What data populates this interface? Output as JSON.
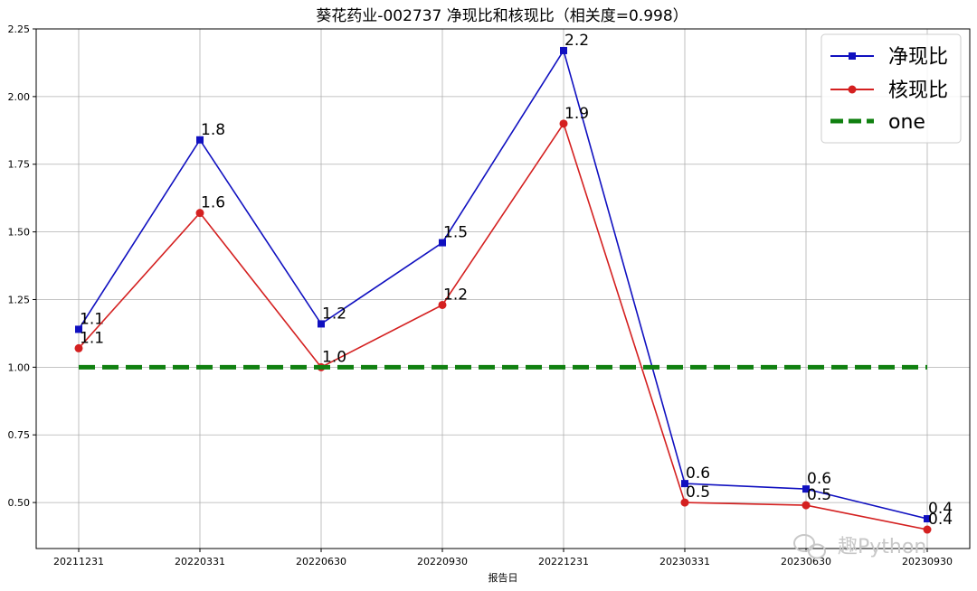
{
  "chart_data": {
    "type": "line",
    "title": "葵花药业-002737 净现比和核现比（相关度=0.998）",
    "xlabel": "报告日",
    "ylabel": "",
    "categories": [
      "20211231",
      "20220331",
      "20220630",
      "20220930",
      "20221231",
      "20230331",
      "20230630",
      "20230930"
    ],
    "ylim": [
      0.33,
      2.25
    ],
    "yticks": [
      "0.50",
      "0.75",
      "1.00",
      "1.25",
      "1.50",
      "1.75",
      "2.00",
      "2.25"
    ],
    "ytick_values": [
      0.5,
      0.75,
      1.0,
      1.25,
      1.5,
      1.75,
      2.0,
      2.25
    ],
    "grid": true,
    "legend_position": "top-right",
    "series": [
      {
        "name": "净现比",
        "color": "#1010c0",
        "marker": "square",
        "values": [
          1.14,
          1.84,
          1.16,
          1.46,
          2.17,
          0.57,
          0.55,
          0.44
        ],
        "labels": [
          "1.1",
          "1.8",
          "1.2",
          "1.5",
          "2.2",
          "0.6",
          "0.6",
          "0.4"
        ]
      },
      {
        "name": "核现比",
        "color": "#d42020",
        "marker": "circle",
        "values": [
          1.07,
          1.57,
          1.0,
          1.23,
          1.9,
          0.5,
          0.49,
          0.4
        ],
        "labels": [
          "1.1",
          "1.6",
          "1.0",
          "1.2",
          "1.9",
          "0.5",
          "0.5",
          "0.4"
        ]
      },
      {
        "name": "one",
        "color": "#108010",
        "marker": "none",
        "dashed": true,
        "values": [
          1,
          1,
          1,
          1,
          1,
          1,
          1,
          1
        ],
        "labels": []
      }
    ]
  },
  "watermark": "趣Python"
}
